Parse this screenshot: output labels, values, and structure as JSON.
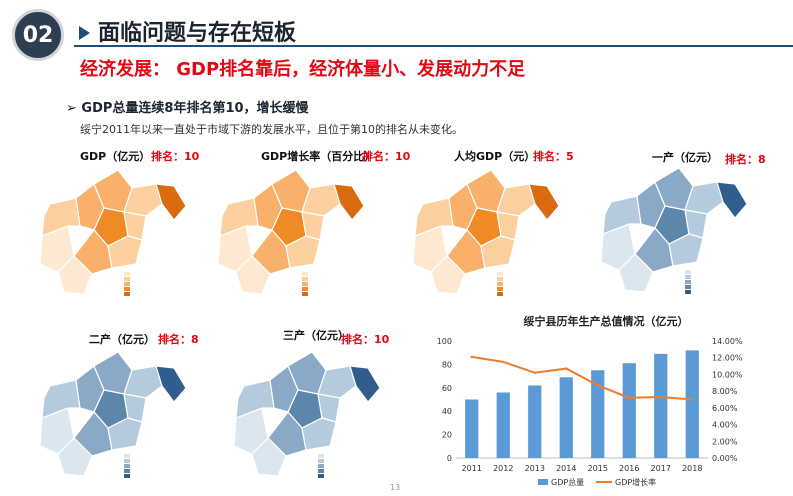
{
  "header": {
    "badge": "02",
    "title": "面临问题与存在短板",
    "subtitle": "经济发展： GDP排名靠后，经济体量小、发展动力不足"
  },
  "section": {
    "bullet": "➢  GDP总量连续8年排名第10，增长缓慢",
    "paragraph": "绥宁2011年以来一直处于市域下游的发展水平，且位于第10的排名从未变化。"
  },
  "maps": [
    {
      "title": "GDP（亿元）",
      "rank": "排名：10",
      "theme": "orange",
      "highlight": "#f08a24"
    },
    {
      "title": "GDP增长率（百分比）",
      "rank": "排名：10",
      "theme": "orange",
      "highlight": "#f08a24"
    },
    {
      "title": "人均GDP（元）",
      "rank": "排名：5",
      "theme": "orange",
      "highlight": "#f08a24"
    },
    {
      "title": "一产（亿元）",
      "rank": "排名：8",
      "theme": "blue",
      "highlight": "#2f5d8c"
    },
    {
      "title": "二产（亿元）",
      "rank": "排名：8",
      "theme": "blue",
      "highlight": "#2f5d8c"
    },
    {
      "title": "三产（亿元）",
      "rank": "排名：10",
      "theme": "blue",
      "highlight": "#2f5d8c"
    }
  ],
  "colors": {
    "bar": "#5b9bd5",
    "line": "#ed7d31",
    "orange_scale": [
      "#fde8d2",
      "#fbcf9e",
      "#f8b06b",
      "#f08a24",
      "#d96b0e"
    ],
    "blue_scale": [
      "#dbe6ef",
      "#b5cadc",
      "#89a9c6",
      "#5d86ab",
      "#2f5d8c"
    ]
  },
  "chart_data": {
    "type": "bar",
    "title": "绥宁县历年生产总值情况（亿元）",
    "categories": [
      "2011",
      "2012",
      "2013",
      "2014",
      "2015",
      "2016",
      "2017",
      "2018"
    ],
    "series": [
      {
        "name": "GDP总量",
        "type": "bar",
        "axis": "left",
        "values": [
          50,
          56,
          62,
          69,
          75,
          81,
          89,
          92
        ]
      },
      {
        "name": "GDP增长率",
        "type": "line",
        "axis": "right",
        "values": [
          12.1,
          11.5,
          10.2,
          10.7,
          8.7,
          7.2,
          7.3,
          7.0
        ]
      }
    ],
    "ylim_left": [
      0,
      100
    ],
    "yticks_left": [
      "0",
      "20",
      "40",
      "60",
      "80",
      "100"
    ],
    "ylim_right": [
      0,
      14
    ],
    "yticks_right": [
      "0.00%",
      "2.00%",
      "4.00%",
      "6.00%",
      "8.00%",
      "10.00%",
      "12.00%",
      "14.00%"
    ],
    "legend": "bottom",
    "grid": false
  },
  "footer": {
    "page": "13"
  }
}
